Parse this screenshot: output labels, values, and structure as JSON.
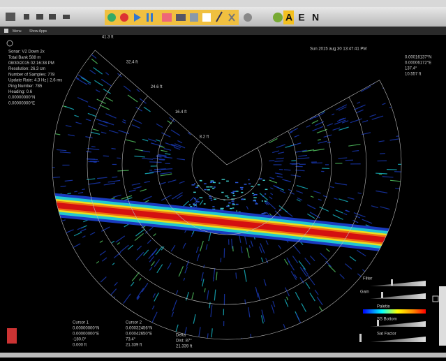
{
  "toolbar": {
    "letters": [
      "A",
      "E",
      "N"
    ]
  },
  "menu": {
    "items": [
      "Menu",
      "Show Apps"
    ]
  },
  "status": {
    "lines": [
      "Sonar: V2 Down 2x",
      "Total Bank 588 m",
      "08/30/2015 02:16:38 PM",
      "Resolution: 26.3 cm",
      "Number of Samples: 778",
      "Update Rate: 4.3 Hz | 2.6 ms",
      "Ping Number: 785",
      "Heading: 0.6",
      "0.00000000°N",
      "0.00000000°E"
    ]
  },
  "timestamp": "Sun 2015 aug 30 13:47:41 PM",
  "position": {
    "lines": [
      "0.00016137°N",
      "0.00006172°E",
      "137.4°",
      "10.557 ft"
    ]
  },
  "range_labels": [
    "41.3 ft",
    "32.4 ft",
    "24.6 ft",
    "16.4 ft",
    "8.2 ft"
  ],
  "cursors": [
    {
      "title": "Cursor 1",
      "lines": [
        "0.00000000°N",
        "0.00000000°E",
        "-180.0°",
        "0.000 ft"
      ]
    },
    {
      "title": "Cursor 2",
      "lines": [
        "0.00032456°N",
        "0.00042650°E",
        "73.4°",
        "21.339 ft"
      ]
    }
  ],
  "delta": {
    "title": "Delta",
    "lines": [
      "Dist: 87°",
      "21.339 ft"
    ]
  },
  "controls": {
    "labels": [
      "Filter",
      "Gain",
      "Palette",
      "SS Bottom",
      "Sat Factor"
    ]
  }
}
